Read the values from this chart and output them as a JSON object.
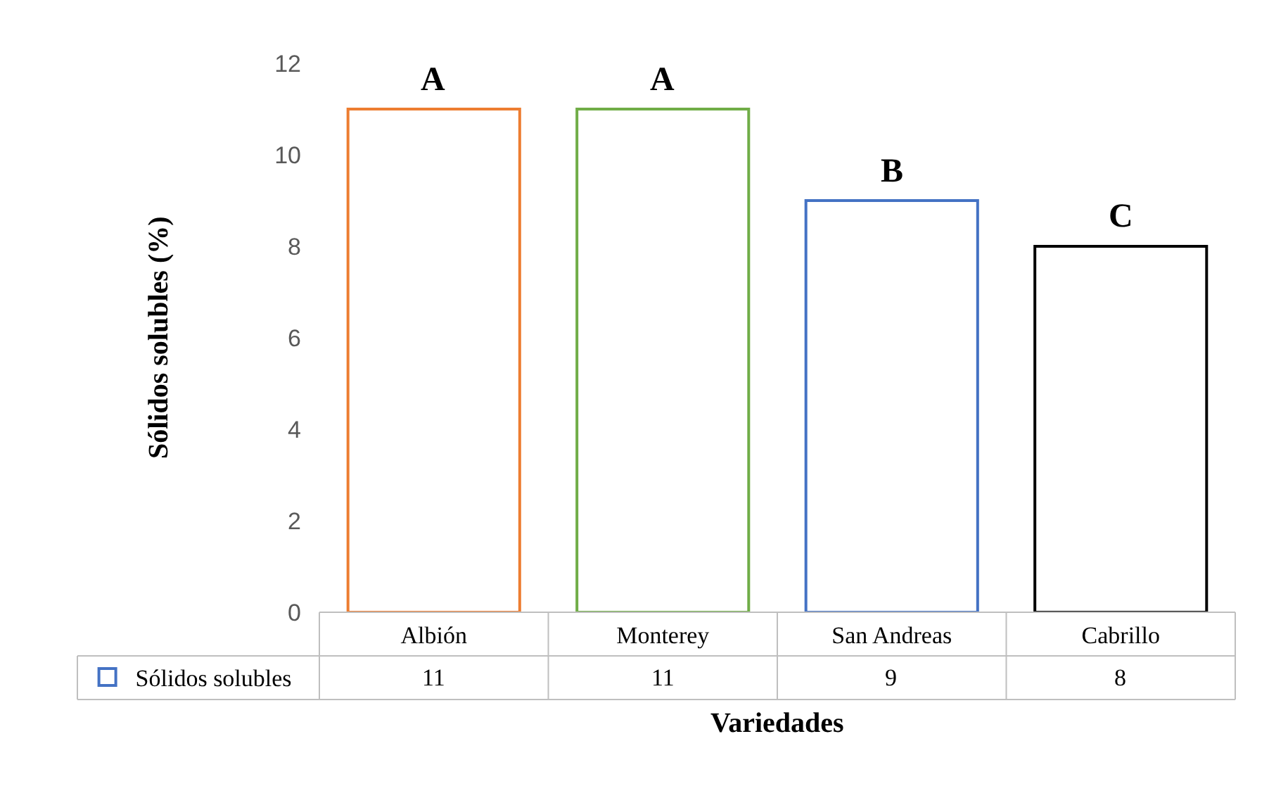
{
  "chart_data": {
    "type": "bar",
    "xlabel": "Variedades",
    "ylabel": "Sólidos solubles (%)",
    "categories": [
      "Albión",
      "Monterey",
      "San Andreas",
      "Cabrillo"
    ],
    "series": [
      {
        "name": "Sólidos solubles",
        "color": "#4472c4",
        "colors": [
          "#ed7d31",
          "#70ad47",
          "#4472c4",
          "#000000"
        ],
        "values": [
          11,
          11,
          9,
          8
        ]
      }
    ],
    "ylim": [
      0,
      12
    ],
    "yticks": [
      0,
      2,
      4,
      6,
      8,
      10,
      12
    ],
    "grid": false,
    "legend": "bottom left",
    "data_labels": true,
    "annotations": [
      {
        "text": "A",
        "x": "Albión",
        "y": 11
      },
      {
        "text": "A",
        "x": "Monterey",
        "y": 11
      },
      {
        "text": "B",
        "x": "San Andreas",
        "y": 9
      },
      {
        "text": "C",
        "x": "Cabrillo",
        "y": 8
      }
    ]
  }
}
